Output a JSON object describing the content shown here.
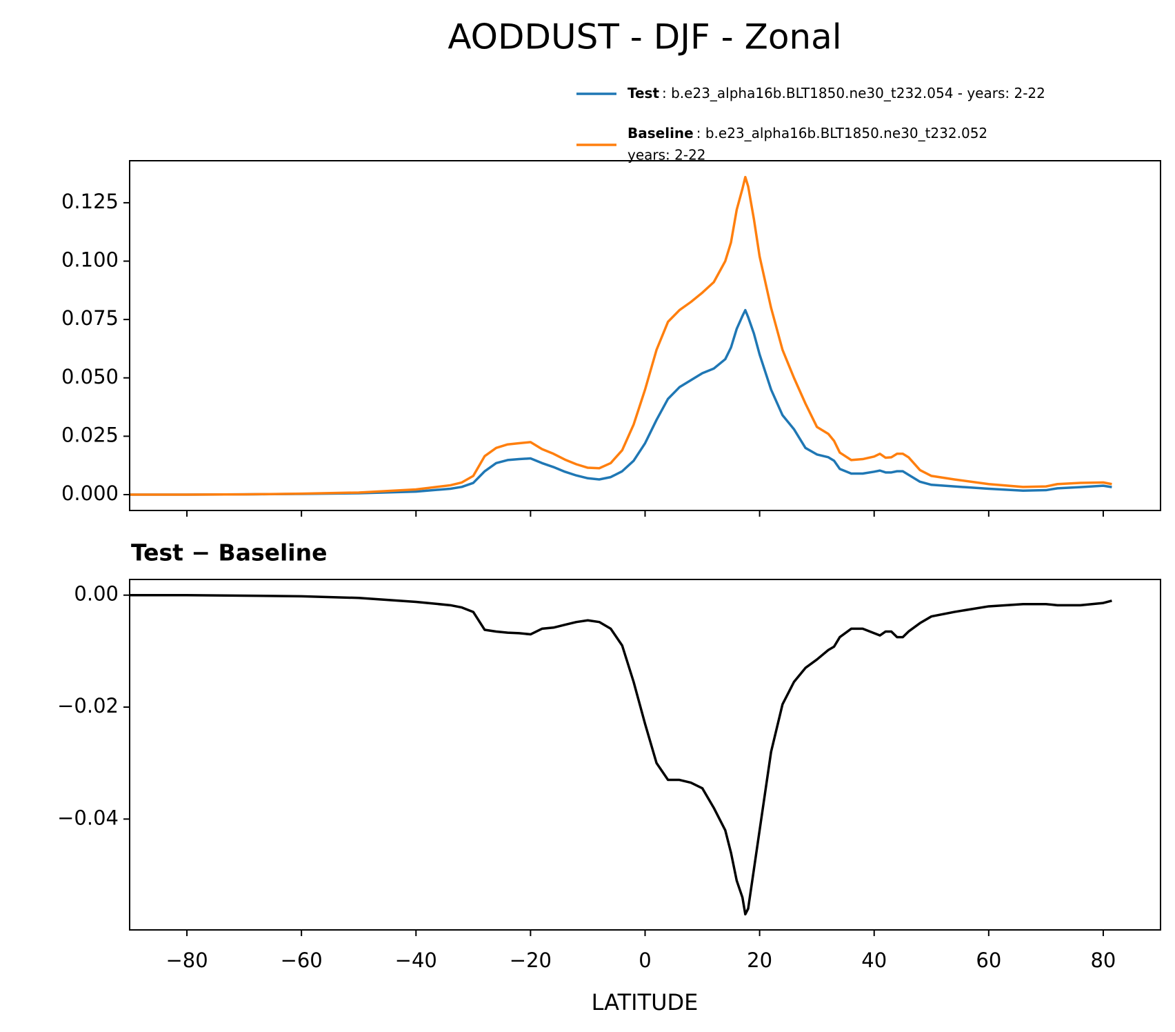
{
  "chart_data": [
    {
      "type": "line",
      "title": "AODDUST - DJF - Zonal",
      "x": [
        -90,
        -80,
        -70,
        -60,
        -50,
        -40,
        -34,
        -32,
        -30,
        -28,
        -26,
        -24,
        -22,
        -20,
        -18,
        -16,
        -14,
        -12,
        -10,
        -8,
        -6,
        -4,
        -2,
        0,
        2,
        4,
        6,
        8,
        10,
        12,
        14,
        15,
        16,
        17,
        17.5,
        18,
        19,
        20,
        22,
        24,
        26,
        28,
        30,
        32,
        33,
        34,
        36,
        38,
        40,
        41,
        42,
        43,
        44,
        45,
        46,
        48,
        50,
        54,
        60,
        66,
        70,
        72,
        76,
        80,
        81.5
      ],
      "series": [
        {
          "name": "Test",
          "description": [
            ": b.e23_alpha16b.BLT1850.ne30_t232.054 - years: 2-22"
          ],
          "color": "#1f77b4",
          "values": [
            0,
            0,
            0.0001,
            0.0003,
            0.0006,
            0.0013,
            0.0025,
            0.0033,
            0.005,
            0.01,
            0.0135,
            0.0148,
            0.0152,
            0.0155,
            0.0135,
            0.0118,
            0.0098,
            0.0082,
            0.007,
            0.0065,
            0.0075,
            0.01,
            0.0145,
            0.022,
            0.032,
            0.041,
            0.046,
            0.049,
            0.052,
            0.054,
            0.058,
            0.063,
            0.071,
            0.0765,
            0.079,
            0.076,
            0.069,
            0.06,
            0.045,
            0.034,
            0.028,
            0.02,
            0.0172,
            0.016,
            0.0145,
            0.011,
            0.009,
            0.009,
            0.0098,
            0.0103,
            0.0095,
            0.0095,
            0.01,
            0.01,
            0.0085,
            0.0055,
            0.0042,
            0.0035,
            0.0025,
            0.0017,
            0.0019,
            0.0027,
            0.0032,
            0.0038,
            0.0032
          ]
        },
        {
          "name": "Baseline",
          "description": [
            ": b.e23_alpha16b.BLT1850.ne30_t232.052",
            "years: 2-22"
          ],
          "color": "#ff7f0e",
          "values": [
            0,
            0,
            0.0001,
            0.0004,
            0.0009,
            0.0022,
            0.004,
            0.0052,
            0.008,
            0.0165,
            0.02,
            0.0215,
            0.022,
            0.0225,
            0.0195,
            0.0175,
            0.015,
            0.013,
            0.0115,
            0.0113,
            0.0135,
            0.019,
            0.03,
            0.045,
            0.062,
            0.074,
            0.079,
            0.0825,
            0.0865,
            0.091,
            0.1,
            0.108,
            0.122,
            0.131,
            0.136,
            0.132,
            0.118,
            0.102,
            0.08,
            0.062,
            0.05,
            0.039,
            0.029,
            0.026,
            0.023,
            0.018,
            0.0148,
            0.0152,
            0.0163,
            0.0175,
            0.0158,
            0.016,
            0.0175,
            0.0175,
            0.016,
            0.0105,
            0.008,
            0.0065,
            0.0045,
            0.0033,
            0.0035,
            0.0045,
            0.005,
            0.0052,
            0.0045
          ]
        }
      ],
      "xlim": [
        -90,
        90
      ],
      "xticks": [
        -80,
        -60,
        -40,
        -20,
        0,
        20,
        40,
        60,
        80
      ],
      "ylim": [
        -0.0068,
        0.143
      ],
      "yticks": [
        {
          "value": 0,
          "label": "0.000"
        },
        {
          "value": 0.025,
          "label": "0.025"
        },
        {
          "value": 0.05,
          "label": "0.050"
        },
        {
          "value": 0.075,
          "label": "0.075"
        },
        {
          "value": 0.1,
          "label": "0.100"
        },
        {
          "value": 0.125,
          "label": "0.125"
        }
      ]
    },
    {
      "type": "line",
      "title": "Test − Baseline",
      "xlabel": "LATITUDE",
      "x": [
        -90,
        -80,
        -70,
        -60,
        -50,
        -40,
        -34,
        -32,
        -30,
        -28,
        -26,
        -24,
        -22,
        -20,
        -18,
        -16,
        -14,
        -12,
        -10,
        -8,
        -6,
        -4,
        -2,
        0,
        2,
        4,
        6,
        8,
        10,
        12,
        14,
        15,
        16,
        17,
        17.5,
        18,
        19,
        20,
        22,
        24,
        26,
        28,
        30,
        32,
        33,
        34,
        36,
        38,
        40,
        41,
        42,
        43,
        44,
        45,
        46,
        48,
        50,
        54,
        60,
        66,
        70,
        72,
        76,
        80,
        81.5
      ],
      "series": [
        {
          "color": "#000000",
          "values": [
            0,
            0,
            -0.0001,
            -0.0002,
            -0.0005,
            -0.0012,
            -0.0018,
            -0.0022,
            -0.003,
            -0.0062,
            -0.0065,
            -0.0067,
            -0.0068,
            -0.007,
            -0.006,
            -0.0058,
            -0.0053,
            -0.0048,
            -0.0045,
            -0.0048,
            -0.006,
            -0.009,
            -0.0155,
            -0.023,
            -0.03,
            -0.033,
            -0.033,
            -0.0335,
            -0.0345,
            -0.038,
            -0.042,
            -0.046,
            -0.051,
            -0.054,
            -0.057,
            -0.056,
            -0.049,
            -0.042,
            -0.028,
            -0.0195,
            -0.0155,
            -0.013,
            -0.0115,
            -0.0098,
            -0.0092,
            -0.0075,
            -0.006,
            -0.006,
            -0.0068,
            -0.0072,
            -0.0065,
            -0.0065,
            -0.0075,
            -0.0075,
            -0.0065,
            -0.005,
            -0.0038,
            -0.003,
            -0.002,
            -0.0016,
            -0.0016,
            -0.0018,
            -0.0018,
            -0.0014,
            -0.001
          ]
        }
      ],
      "xlim": [
        -90,
        90
      ],
      "xticks": [
        {
          "value": -80,
          "label": "−80"
        },
        {
          "value": -60,
          "label": "−60"
        },
        {
          "value": -40,
          "label": "−40"
        },
        {
          "value": -20,
          "label": "−20"
        },
        0,
        20,
        40,
        60,
        80
      ],
      "ylim": [
        -0.0598,
        0.0028
      ],
      "yticks": [
        {
          "value": 0,
          "label": "0.00"
        },
        {
          "value": -0.02,
          "label": "−0.02"
        },
        {
          "value": -0.04,
          "label": "−0.04"
        }
      ]
    }
  ]
}
